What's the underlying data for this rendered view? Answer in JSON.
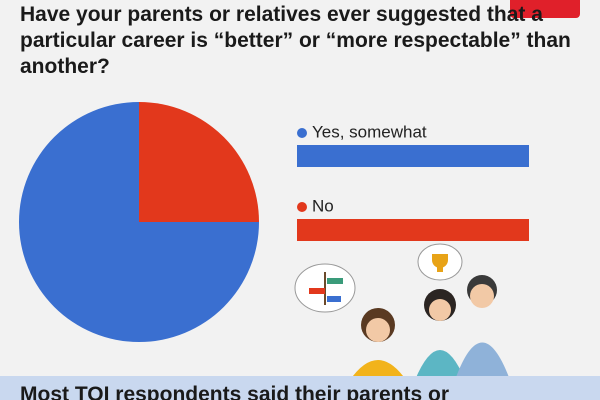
{
  "chart_data": {
    "type": "pie",
    "title": "Have your parents or relatives ever suggested that a particular career is “better” or “more respectable” than another?",
    "categories": [
      "Yes, somewhat",
      "No"
    ],
    "values": [
      75,
      25
    ],
    "colors": [
      "#3a6fd0",
      "#e2381c"
    ]
  },
  "footer": {
    "text": "Most TOI respondents said their parents or"
  }
}
